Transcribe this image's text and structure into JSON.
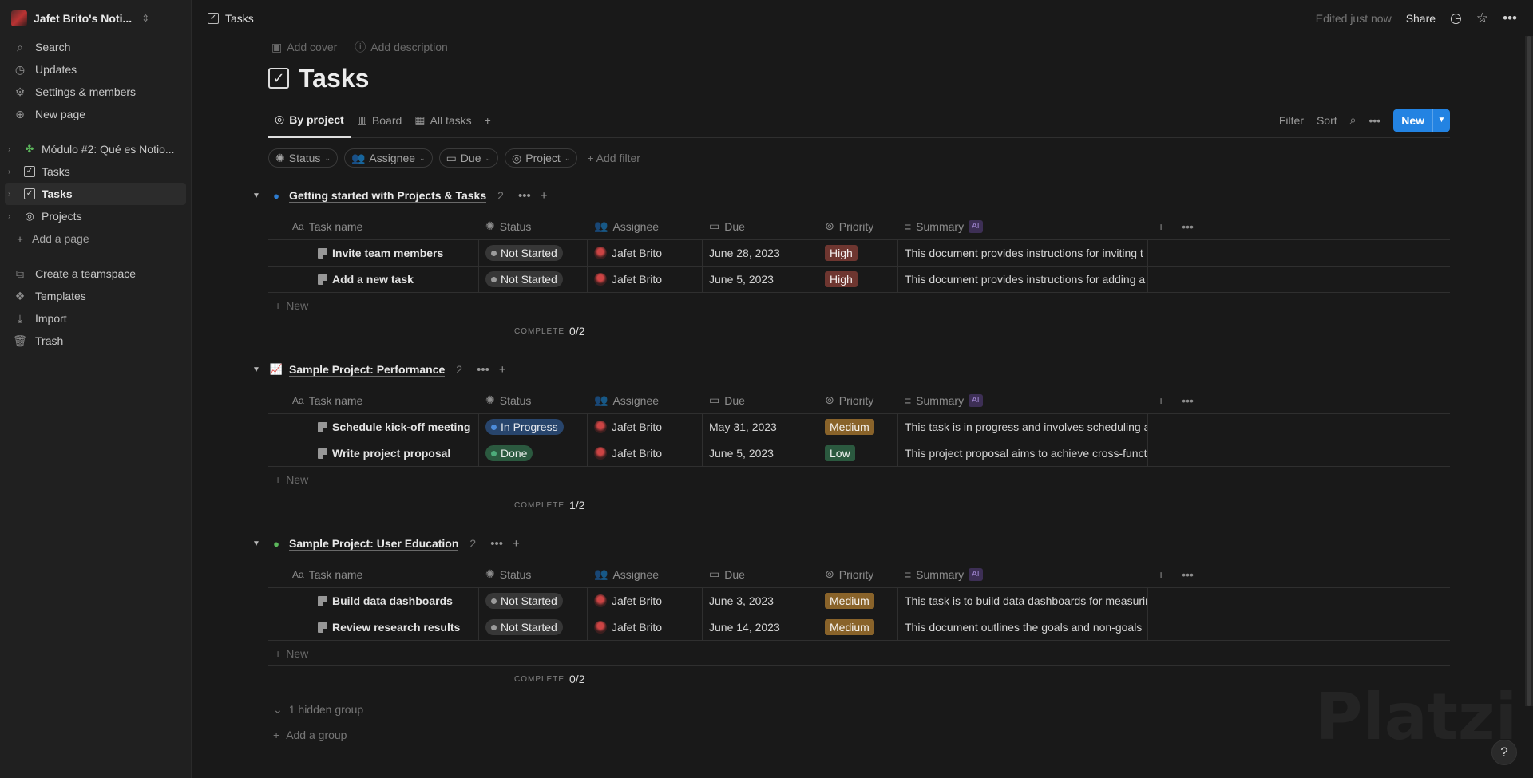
{
  "colors": {
    "accent": "#2383e2",
    "status_not_started_bg": "#373737",
    "status_not_started_dot": "#9b9b9b",
    "status_in_progress_bg": "#28456c",
    "status_in_progress_dot": "#4c8bd9",
    "status_done_bg": "#2b593f",
    "status_done_dot": "#4dab7a",
    "priority_high": "#6e3630",
    "priority_medium": "#89632a",
    "priority_low": "#2b593f"
  },
  "workspace": {
    "name": "Jafet Brito's Noti..."
  },
  "sidebar": {
    "nav": [
      {
        "label": "Search",
        "icon": "search-icon"
      },
      {
        "label": "Updates",
        "icon": "clock-icon"
      },
      {
        "label": "Settings & members",
        "icon": "gear-icon"
      },
      {
        "label": "New page",
        "icon": "plus-circle-icon"
      }
    ],
    "pages": [
      {
        "label": "Módulo #2: Qué es Notio...",
        "icon": "clover-icon"
      },
      {
        "label": "Tasks",
        "icon": "checkbox-icon"
      },
      {
        "label": "Tasks",
        "icon": "checkbox-icon",
        "active": true
      },
      {
        "label": "Projects",
        "icon": "target-icon"
      }
    ],
    "add_page": "Add a page",
    "bottom": [
      {
        "label": "Create a teamspace",
        "icon": "teamspace-icon"
      },
      {
        "label": "Templates",
        "icon": "templates-icon"
      },
      {
        "label": "Import",
        "icon": "import-icon"
      },
      {
        "label": "Trash",
        "icon": "trash-icon"
      }
    ]
  },
  "topbar": {
    "breadcrumb": "Tasks",
    "edited": "Edited just now",
    "share": "Share"
  },
  "page": {
    "add_cover": "Add cover",
    "add_description": "Add description",
    "title": "Tasks"
  },
  "views": {
    "tabs": [
      {
        "label": "By project",
        "icon": "target-icon",
        "active": true
      },
      {
        "label": "Board",
        "icon": "board-icon"
      },
      {
        "label": "All tasks",
        "icon": "table-icon"
      }
    ],
    "filter": "Filter",
    "sort": "Sort",
    "new": "New"
  },
  "filters": {
    "chips": [
      "Status",
      "Assignee",
      "Due",
      "Project"
    ],
    "add_filter": "Add filter"
  },
  "columns": {
    "name": "Task name",
    "status": "Status",
    "assignee": "Assignee",
    "due": "Due",
    "priority": "Priority",
    "summary": "Summary",
    "ai": "AI"
  },
  "groups": [
    {
      "title": "Getting started with Projects & Tasks",
      "count": "2",
      "icon": "globe-blue-icon",
      "rows": [
        {
          "name": "Invite team members",
          "status": "Not Started",
          "status_key": "not_started",
          "assignee": "Jafet Brito",
          "due": "June 28, 2023",
          "priority": "High",
          "priority_key": "high",
          "summary": "This document provides instructions for inviting t"
        },
        {
          "name": "Add a new task",
          "status": "Not Started",
          "status_key": "not_started",
          "assignee": "Jafet Brito",
          "due": "June 5, 2023",
          "priority": "High",
          "priority_key": "high",
          "summary": "This document provides instructions for adding a"
        }
      ],
      "complete_label": "COMPLETE",
      "complete_value": "0/2"
    },
    {
      "title": "Sample Project: Performance",
      "count": "2",
      "icon": "chart-icon",
      "rows": [
        {
          "name": "Schedule kick-off meeting",
          "status": "In Progress",
          "status_key": "in_progress",
          "assignee": "Jafet Brito",
          "due": "May 31, 2023",
          "priority": "Medium",
          "priority_key": "medium",
          "summary": "This task is in progress and involves scheduling a"
        },
        {
          "name": "Write project proposal",
          "status": "Done",
          "status_key": "done",
          "assignee": "Jafet Brito",
          "due": "June 5, 2023",
          "priority": "Low",
          "priority_key": "low",
          "summary": "This project proposal aims to achieve cross-functi"
        }
      ],
      "complete_label": "COMPLETE",
      "complete_value": "1/2"
    },
    {
      "title": "Sample Project: User Education",
      "count": "2",
      "icon": "apple-icon",
      "rows": [
        {
          "name": "Build data dashboards",
          "status": "Not Started",
          "status_key": "not_started",
          "assignee": "Jafet Brito",
          "due": "June 3, 2023",
          "priority": "Medium",
          "priority_key": "medium",
          "summary": "This task is to build data dashboards for measurin"
        },
        {
          "name": "Review research results",
          "status": "Not Started",
          "status_key": "not_started",
          "assignee": "Jafet Brito",
          "due": "June 14, 2023",
          "priority": "Medium",
          "priority_key": "medium",
          "summary": "This document outlines the goals and non-goals"
        }
      ],
      "complete_label": "COMPLETE",
      "complete_value": "0/2"
    }
  ],
  "new_row": "New",
  "hidden_group": "1 hidden group",
  "add_group": "Add a group",
  "watermark": "Platzi",
  "help": "?"
}
